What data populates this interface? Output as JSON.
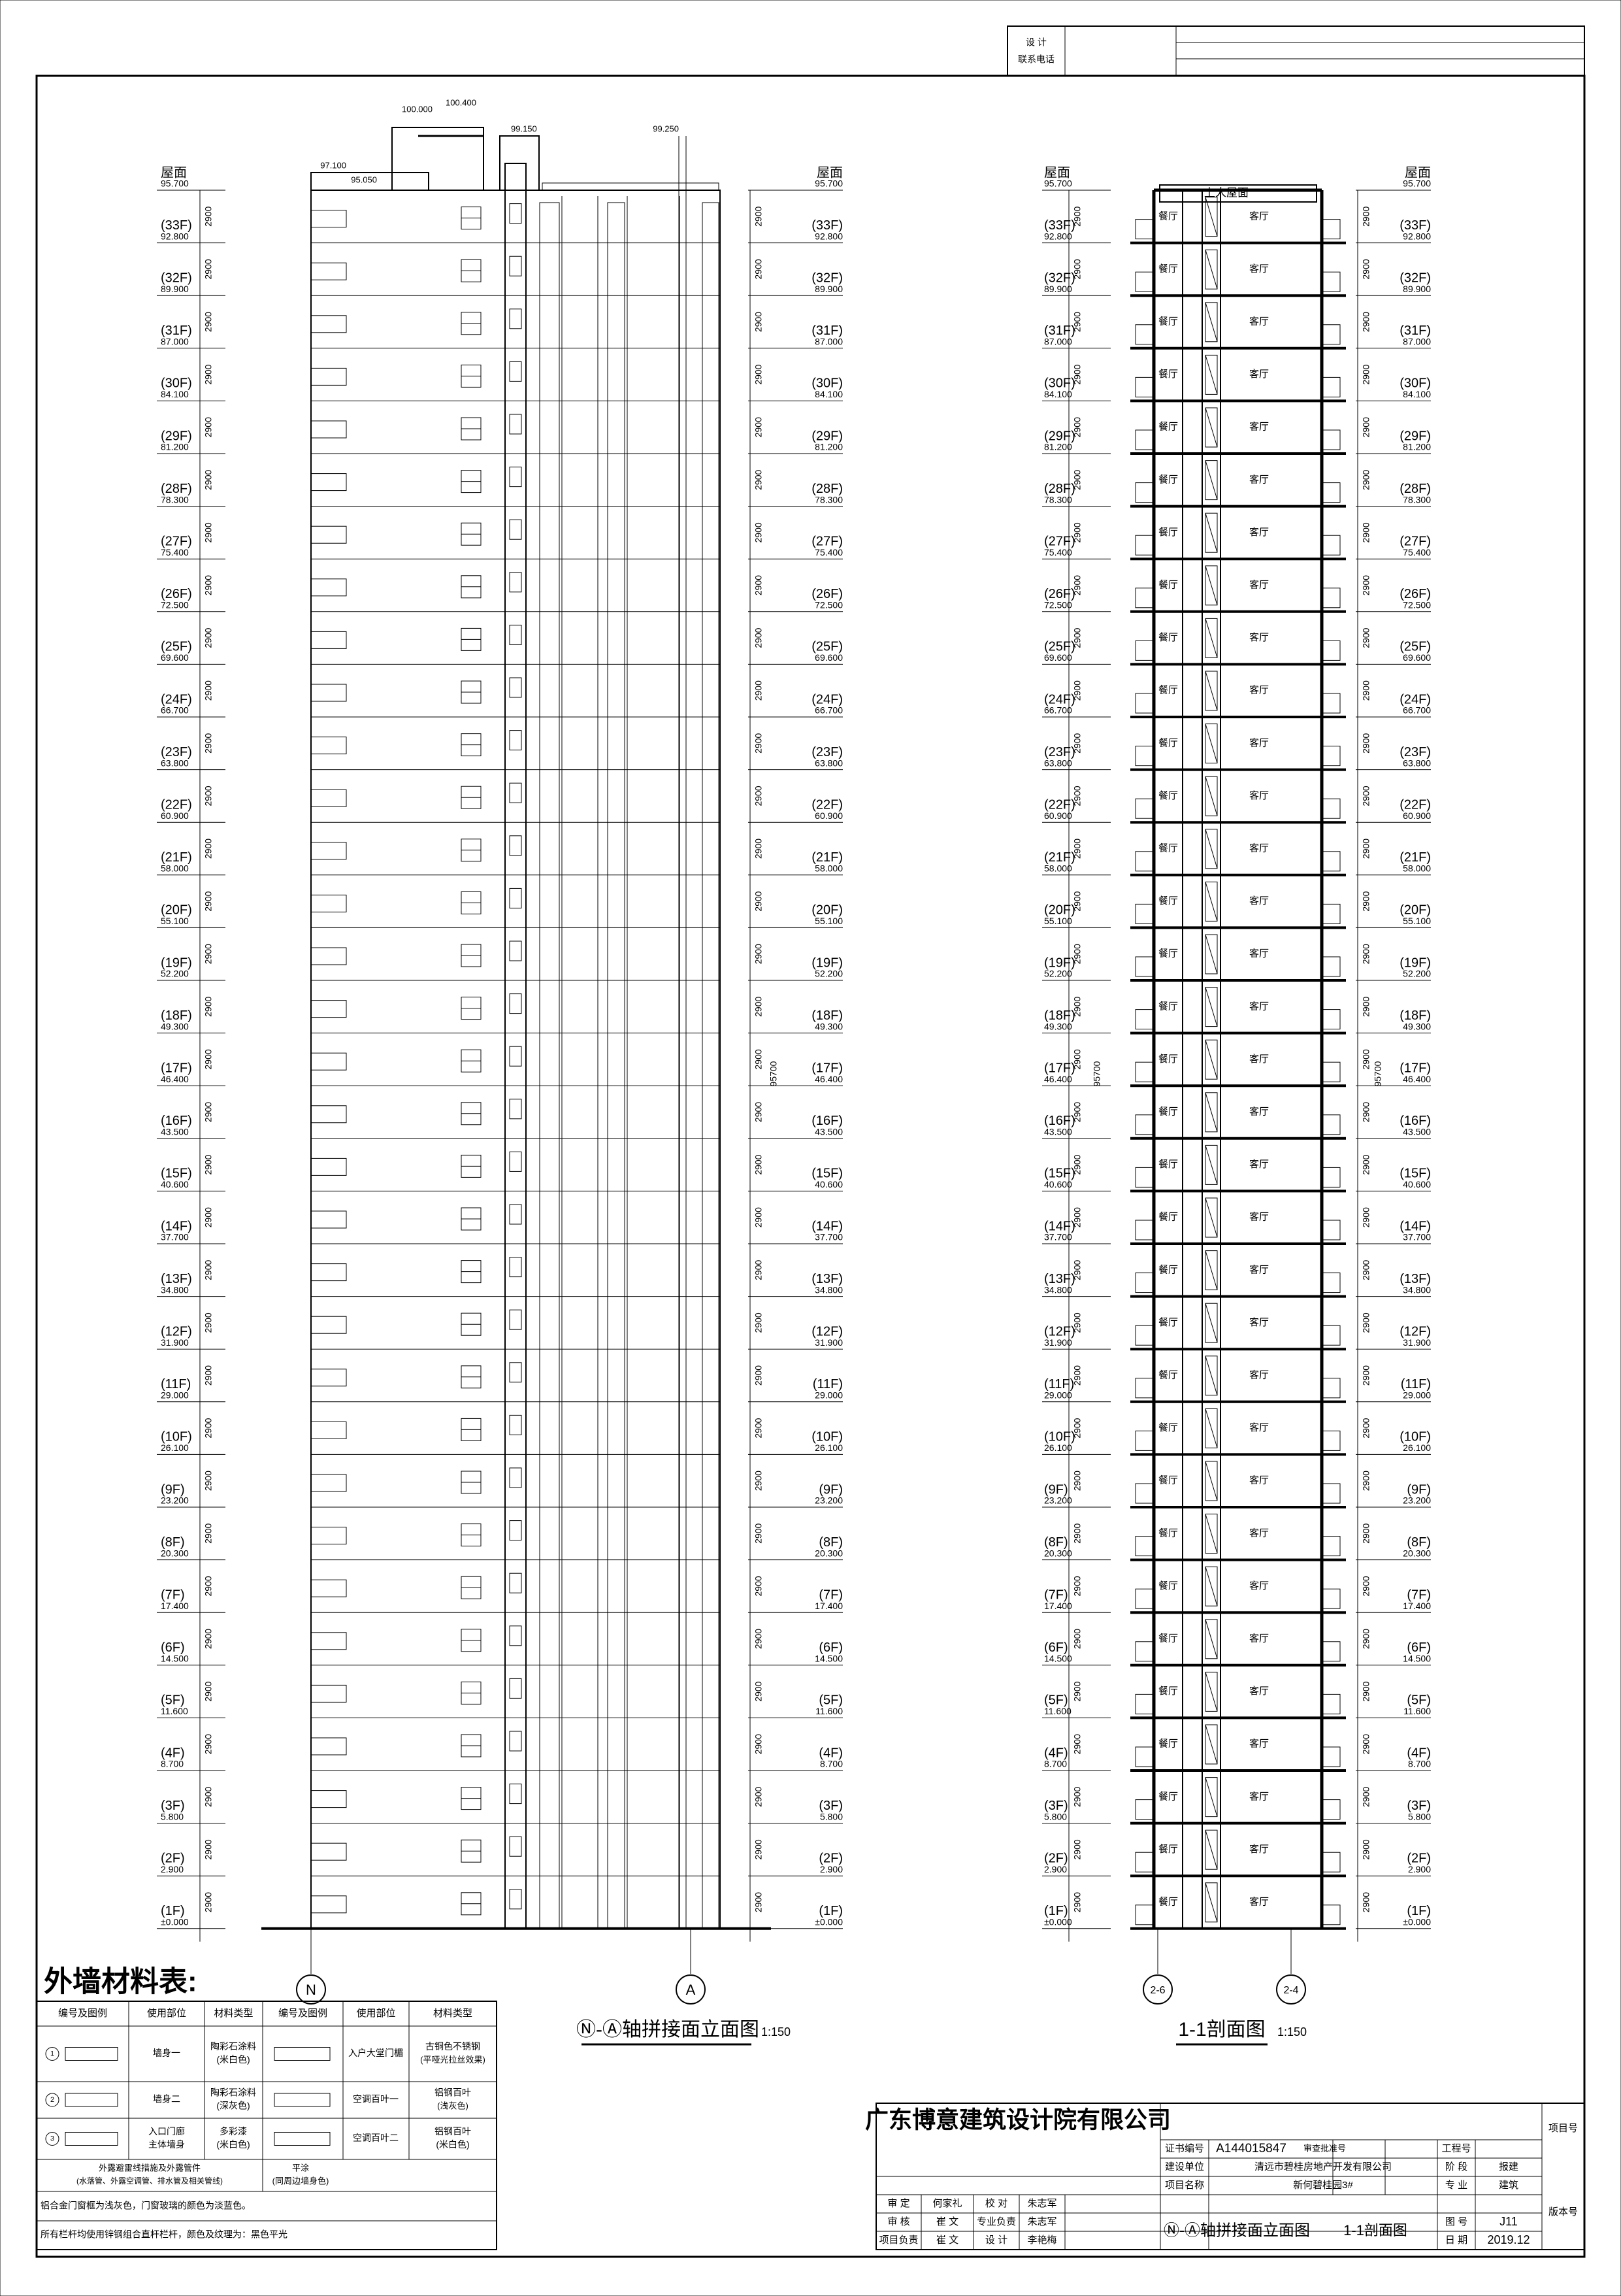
{
  "header": {
    "design": "设 计",
    "contact": "联系电话"
  },
  "roof": {
    "name": "屋面",
    "elevation": "95.700"
  },
  "floors": [
    {
      "name": "(33F)",
      "elevation": "92.800"
    },
    {
      "name": "(32F)",
      "elevation": "89.900"
    },
    {
      "name": "(31F)",
      "elevation": "87.000"
    },
    {
      "name": "(30F)",
      "elevation": "84.100"
    },
    {
      "name": "(29F)",
      "elevation": "81.200"
    },
    {
      "name": "(28F)",
      "elevation": "78.300"
    },
    {
      "name": "(27F)",
      "elevation": "75.400"
    },
    {
      "name": "(26F)",
      "elevation": "72.500"
    },
    {
      "name": "(25F)",
      "elevation": "69.600"
    },
    {
      "name": "(24F)",
      "elevation": "66.700"
    },
    {
      "name": "(23F)",
      "elevation": "63.800"
    },
    {
      "name": "(22F)",
      "elevation": "60.900"
    },
    {
      "name": "(21F)",
      "elevation": "58.000"
    },
    {
      "name": "(20F)",
      "elevation": "55.100"
    },
    {
      "name": "(19F)",
      "elevation": "52.200"
    },
    {
      "name": "(18F)",
      "elevation": "49.300"
    },
    {
      "name": "(17F)",
      "elevation": "46.400"
    },
    {
      "name": "(16F)",
      "elevation": "43.500"
    },
    {
      "name": "(15F)",
      "elevation": "40.600"
    },
    {
      "name": "(14F)",
      "elevation": "37.700"
    },
    {
      "name": "(13F)",
      "elevation": "34.800"
    },
    {
      "name": "(12F)",
      "elevation": "31.900"
    },
    {
      "name": "(11F)",
      "elevation": "29.000"
    },
    {
      "name": "(10F)",
      "elevation": "26.100"
    },
    {
      "name": "(9F)",
      "elevation": "23.200"
    },
    {
      "name": "(8F)",
      "elevation": "20.300"
    },
    {
      "name": "(7F)",
      "elevation": "17.400"
    },
    {
      "name": "(6F)",
      "elevation": "14.500"
    },
    {
      "name": "(5F)",
      "elevation": "11.600"
    },
    {
      "name": "(4F)",
      "elevation": "8.700"
    },
    {
      "name": "(3F)",
      "elevation": "5.800"
    },
    {
      "name": "(2F)",
      "elevation": "2.900"
    },
    {
      "name": "(1F)",
      "elevation": "±0.000"
    }
  ],
  "floor_height": "2900",
  "total_height": "95700",
  "elevation_view": {
    "top_levels": [
      "100.400",
      "100.000",
      "99.150",
      "99.250",
      "97.100",
      "95.050"
    ],
    "axes": [
      "N",
      "A"
    ],
    "title": "Ⓝ-Ⓐ轴拼接面立面图",
    "scale": "1:150"
  },
  "section_view": {
    "roof_label": "上人屋面",
    "rooms": [
      "餐厅",
      "客厅"
    ],
    "axes": [
      "2-6",
      "2-4"
    ],
    "title": "1-1剖面图",
    "scale": "1:150"
  },
  "materials": {
    "title": "外墙材料表:",
    "headers": [
      "编号及图例",
      "使用部位",
      "材料类型",
      "编号及图例",
      "使用部位",
      "材料类型"
    ],
    "rows": [
      [
        "1",
        "墙身一",
        "陶彩石涂料",
        "(米白色)",
        "入户大堂门楣",
        "古铜色不锈钢",
        "(平哑光拉丝效果)"
      ],
      [
        "2",
        "墙身二",
        "陶彩石涂料",
        "(深灰色)",
        "空调百叶一",
        "铝钢百叶",
        "(浅灰色)"
      ],
      [
        "3",
        "入口门廊",
        "主体墙身",
        "多彩漆",
        "(米白色)",
        "空调百叶二",
        "铝钢百叶",
        "(米白色)"
      ]
    ],
    "footer": [
      "外露避雷线措施及外露管件",
      "(水落管、外露空调管、排水管及相关管线)",
      "平涂",
      "(同周边墙身色)"
    ],
    "notes": [
      "铝合金门窗框为浅灰色，门窗玻璃的颜色为淡蓝色。",
      "所有栏杆均使用锌钢组合直杆栏杆，颜色及纹理为：黑色平光"
    ]
  },
  "title_block": {
    "company": "广东博意建筑设计院有限公司",
    "cert_label": "证书编号",
    "cert": "A144015847",
    "approval_label": "审查批准号",
    "project_no_label": "工程号",
    "item_no_label": "项目号",
    "client_label": "建设单位",
    "client": "清远市碧桂房地产开发有限公司",
    "stage_label": "阶 段",
    "stage": "报建",
    "approve_label": "审 定",
    "approver": "何家礼",
    "check_label": "校 对",
    "checker": "朱志军",
    "project_label": "项目名称",
    "project": "新何碧桂园3#",
    "discipline_label": "专 业",
    "discipline": "建筑",
    "version_label": "版本号",
    "review_label": "审 核",
    "reviewer": "崔 文",
    "lead_label": "专业负责",
    "lead": "朱志军",
    "sheet_label": "图 号",
    "sheet": "J11",
    "manager_label": "项目负责",
    "manager": "崔 文",
    "designer_label": "设 计",
    "designer": "李艳梅",
    "date_label": "日 期",
    "date": "2019.12",
    "drawing_names": [
      "Ⓝ-Ⓐ轴拼接面立面图",
      "1-1剖面图"
    ]
  }
}
